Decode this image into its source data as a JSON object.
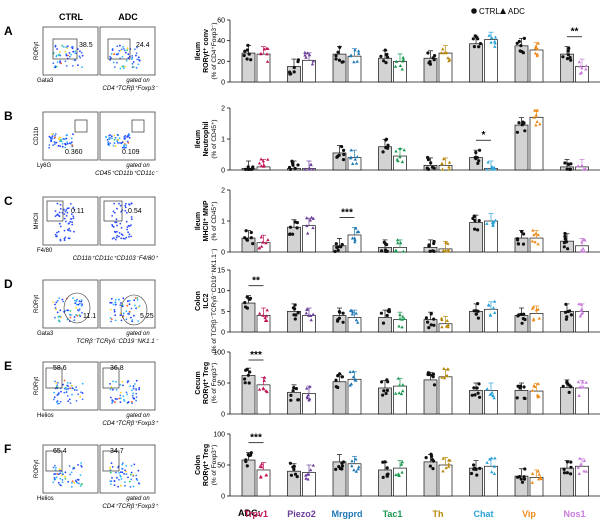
{
  "legend": {
    "ctrl": "CTRL",
    "adc": "ADC"
  },
  "flow": {
    "col_ctrl": "CTRL",
    "col_adc": "ADC",
    "rows": [
      {
        "letter": "A",
        "y_axis": "RORγt",
        "x_axis": "Gata3",
        "ctrl_value": "38.5",
        "adc_value": "24.4",
        "gating": "CD4⁺TCRβ⁺Foxp3⁻",
        "gated_on": "gated on"
      },
      {
        "letter": "B",
        "y_axis": "CD11b",
        "x_axis": "Ly6G",
        "ctrl_value": "0.360",
        "adc_value": "0.109",
        "gating": "CD45⁺CD11b⁺CD11c⁻",
        "gated_on": "gated on"
      },
      {
        "letter": "C",
        "y_axis": "MHCII",
        "x_axis": "F4/80",
        "ctrl_value": "0.11",
        "adc_value": "0.54",
        "gating": "CD11b⁺CD11c⁺CD103⁻F4/80⁺",
        "gated_on": ""
      },
      {
        "letter": "D",
        "y_axis": "RORγt",
        "x_axis": "Gata3",
        "ctrl_value": "11.1",
        "adc_value": "5.25",
        "gating": "TCRβ⁻TCRγδ⁻CD19⁻NK1.1⁻",
        "gated_on": "gated on"
      },
      {
        "letter": "E",
        "y_axis": "RORγt",
        "x_axis": "Helios",
        "ctrl_value": "58.6",
        "adc_value": "36.8",
        "gating": "CD4⁺TCRβ⁺Foxp3⁺",
        "gated_on": "gated on"
      },
      {
        "letter": "F",
        "y_axis": "RORγt",
        "x_axis": "Helios",
        "ctrl_value": "65.4",
        "adc_value": "34.7",
        "gating": "CD4⁺TCRβ⁺Foxp3⁺",
        "gated_on": "gated on"
      }
    ]
  },
  "chart_data": {
    "type": "bar",
    "adc_label": "ADC:",
    "categories": [
      "Trpv1",
      "Piezo2",
      "Mrgprd",
      "Tac1",
      "Th",
      "Chat",
      "Vip",
      "Nos1"
    ],
    "category_colors": [
      "#c2185b",
      "#6a3d9a",
      "#1f78b4",
      "#1a9850",
      "#b8860b",
      "#29a3d9",
      "#ee8a18",
      "#c77bd9"
    ],
    "series_names": [
      "CTRL",
      "ADC"
    ],
    "panels": [
      {
        "title": "Ileum",
        "ylabel": "RORγt⁺ conv",
        "ylabel_unit": "(% of CD4⁺Foxp3⁻)",
        "ylim": [
          0,
          60
        ],
        "yticks": [
          0,
          20,
          40,
          60
        ],
        "ctrl": [
          28,
          15,
          27,
          23,
          23,
          37,
          35,
          27
        ],
        "adc": [
          27,
          21,
          25,
          20,
          28,
          41,
          31,
          15
        ],
        "significance": [
          {
            "category": "Nos1",
            "label": "**"
          }
        ]
      },
      {
        "title": "Ileum",
        "ylabel": "Neutrophil",
        "ylabel_unit": "(% of CD45⁺)",
        "ylim": [
          0,
          2
        ],
        "yticks": [
          0,
          1,
          2
        ],
        "ctrl": [
          0.05,
          0.05,
          0.55,
          0.75,
          0.15,
          0.4,
          1.45,
          0.1
        ],
        "adc": [
          0.1,
          0.05,
          0.4,
          0.45,
          0.15,
          0.05,
          1.7,
          0.1
        ],
        "significance": [
          {
            "category": "Chat",
            "label": "*"
          }
        ]
      },
      {
        "title": "Ileum",
        "ylabel": "MHCII⁺ MNP",
        "ylabel_unit": "(% of CD45⁺)",
        "ylim": [
          0,
          2
        ],
        "yticks": [
          0,
          1,
          2
        ],
        "ctrl": [
          0.45,
          0.8,
          0.2,
          0.15,
          0.15,
          0.95,
          0.45,
          0.35
        ],
        "adc": [
          0.3,
          0.85,
          0.55,
          0.15,
          0.1,
          1.0,
          0.45,
          0.2
        ],
        "significance": [
          {
            "category": "Mrgprd",
            "label": "***"
          }
        ]
      },
      {
        "title": "Colon",
        "ylabel": "ILC2",
        "ylabel_unit": "(% of TCRβ⁻TCRγδ⁻CD19⁻NK1.1⁻)",
        "ylim": [
          0,
          15
        ],
        "yticks": [
          0,
          5,
          10,
          15
        ],
        "ctrl": [
          7,
          5,
          4,
          3.5,
          3,
          5,
          4,
          5
        ],
        "adc": [
          4,
          4,
          3.5,
          3,
          2,
          5.5,
          4.5,
          5
        ],
        "significance": [
          {
            "category": "Trpv1",
            "label": "**"
          }
        ]
      },
      {
        "title": "Cecum",
        "ylabel": "RORγt⁺ Treg",
        "ylabel_unit": "(% of Foxp3⁺)",
        "ylim": [
          0,
          100
        ],
        "yticks": [
          0,
          50,
          100
        ],
        "ctrl": [
          62,
          35,
          52,
          42,
          55,
          38,
          38,
          43
        ],
        "adc": [
          47,
          33,
          56,
          45,
          60,
          38,
          37,
          42
        ],
        "significance": [
          {
            "category": "Trpv1",
            "label": "***"
          }
        ]
      },
      {
        "title": "Colon",
        "ylabel": "RORγt⁺ Treg",
        "ylabel_unit": "(% of Foxp3⁺)",
        "ylim": [
          0,
          100
        ],
        "yticks": [
          0,
          50,
          100
        ],
        "ctrl": [
          58,
          40,
          55,
          42,
          55,
          45,
          32,
          45
        ],
        "adc": [
          42,
          38,
          52,
          45,
          50,
          48,
          30,
          48
        ],
        "significance": [
          {
            "category": "Trpv1",
            "label": "***"
          }
        ]
      }
    ]
  }
}
